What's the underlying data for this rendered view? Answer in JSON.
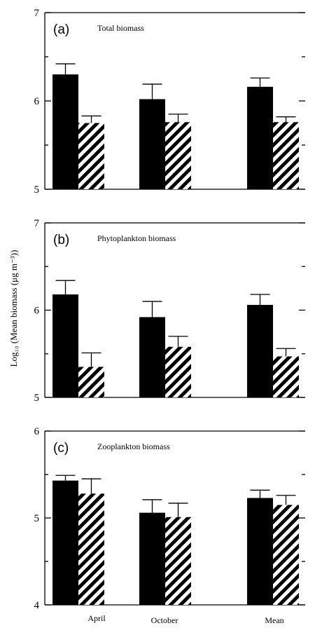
{
  "chart_data": [
    {
      "type": "bar",
      "panel_label": "(a)",
      "title": "Total biomass",
      "categories": [
        "April",
        "October",
        "Mean"
      ],
      "series": [
        {
          "fill": "solid",
          "values": [
            6.3,
            6.02,
            6.16
          ],
          "errors": [
            0.12,
            0.17,
            0.1
          ]
        },
        {
          "fill": "hatched",
          "values": [
            5.75,
            5.76,
            5.76
          ],
          "errors": [
            0.08,
            0.09,
            0.06
          ]
        }
      ],
      "ylim": [
        5,
        7
      ],
      "yticks": [
        5,
        6,
        7
      ]
    },
    {
      "type": "bar",
      "panel_label": "(b)",
      "title": "Phytoplankton biomass",
      "categories": [
        "April",
        "October",
        "Mean"
      ],
      "series": [
        {
          "fill": "solid",
          "values": [
            6.18,
            5.92,
            6.06
          ],
          "errors": [
            0.16,
            0.18,
            0.12
          ]
        },
        {
          "fill": "hatched",
          "values": [
            5.35,
            5.58,
            5.47
          ],
          "errors": [
            0.16,
            0.12,
            0.09
          ]
        }
      ],
      "ylim": [
        5,
        7
      ],
      "yticks": [
        5,
        6,
        7
      ]
    },
    {
      "type": "bar",
      "panel_label": "(c)",
      "title": "Zooplankton biomass",
      "categories": [
        "April",
        "October",
        "Mean"
      ],
      "series": [
        {
          "fill": "solid",
          "values": [
            5.43,
            5.06,
            5.23
          ],
          "errors": [
            0.06,
            0.15,
            0.09
          ]
        },
        {
          "fill": "hatched",
          "values": [
            5.28,
            5.01,
            5.15
          ],
          "errors": [
            0.17,
            0.16,
            0.11
          ]
        }
      ],
      "ylim": [
        4,
        6
      ],
      "yticks": [
        4,
        5,
        6
      ]
    }
  ],
  "ylabel": "Log₁₀ (Mean biomass (μg m⁻³))",
  "colors": {
    "bar": "#000000",
    "background": "#ffffff"
  }
}
